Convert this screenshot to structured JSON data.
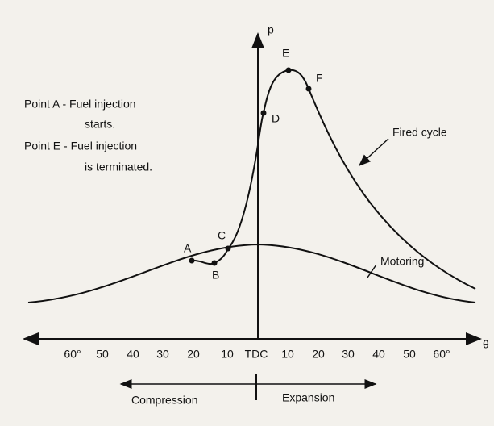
{
  "axes": {
    "y_label": "p",
    "x_label": "θ",
    "ticks": [
      "60°",
      "50",
      "40",
      "30",
      "20",
      "10",
      "TDC",
      "10",
      "20",
      "30",
      "40",
      "50",
      "60°"
    ]
  },
  "points": [
    "A",
    "B",
    "C",
    "D",
    "E",
    "F"
  ],
  "notes": [
    "Point A - Fuel injection",
    "starts.",
    "Point E - Fuel injection",
    "is terminated."
  ],
  "curves": {
    "fired": "Fired cycle",
    "motoring": "Motoring"
  },
  "phases": {
    "compression": "Compression",
    "expansion": "Expansion"
  }
}
